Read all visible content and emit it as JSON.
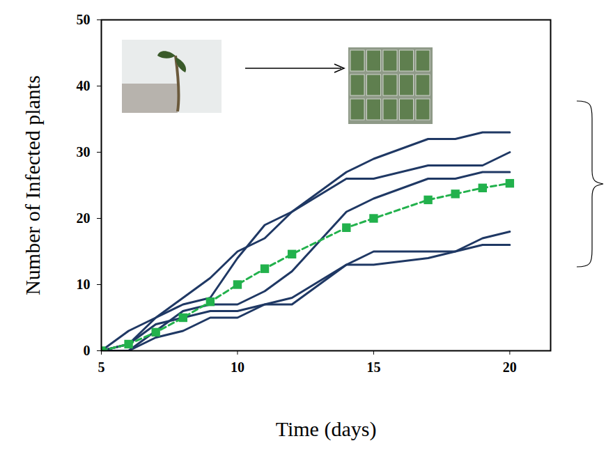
{
  "chart_data": {
    "type": "line",
    "x_label": "Time (days)",
    "y_label": "Number of Infected plants",
    "x": [
      5,
      6,
      7,
      8,
      9,
      10,
      11,
      12,
      14,
      15,
      17,
      18,
      19,
      20
    ],
    "series": [
      {
        "color": "#1f3864",
        "line_style": "solid",
        "values": [
          0,
          3,
          5,
          8,
          11,
          15,
          17,
          21,
          27,
          29,
          32,
          32,
          33,
          33
        ]
      },
      {
        "color": "#1f3864",
        "line_style": "solid",
        "values": [
          0,
          1,
          5,
          7,
          8,
          14,
          19,
          21,
          26,
          26,
          28,
          28,
          28,
          30
        ]
      },
      {
        "color": "#1f3864",
        "line_style": "solid",
        "values": [
          0,
          0,
          3,
          6,
          7,
          7,
          9,
          12,
          21,
          23,
          26,
          26,
          27,
          27
        ]
      },
      {
        "color": "#1f3864",
        "line_style": "solid",
        "values": [
          0,
          1,
          4,
          5,
          6,
          6,
          7,
          8,
          13,
          15,
          15,
          15,
          17,
          18
        ]
      },
      {
        "color": "#1f3864",
        "line_style": "solid",
        "values": [
          0,
          0,
          2,
          3,
          5,
          5,
          7,
          7,
          13,
          13,
          14,
          15,
          16,
          16
        ]
      },
      {
        "color": "#22b14c",
        "line_style": "dashed",
        "marker": "square",
        "values": [
          0,
          1,
          2.8,
          5,
          7.4,
          10,
          12.4,
          14.6,
          18.6,
          20,
          22.8,
          23.7,
          24.6,
          25.3
        ]
      }
    ],
    "xlim": [
      5,
      21.5
    ],
    "xticks": [
      5,
      10,
      15,
      20
    ],
    "ylim": [
      0,
      50
    ],
    "yticks": [
      0,
      10,
      20,
      30,
      40,
      50
    ],
    "grid": false
  }
}
